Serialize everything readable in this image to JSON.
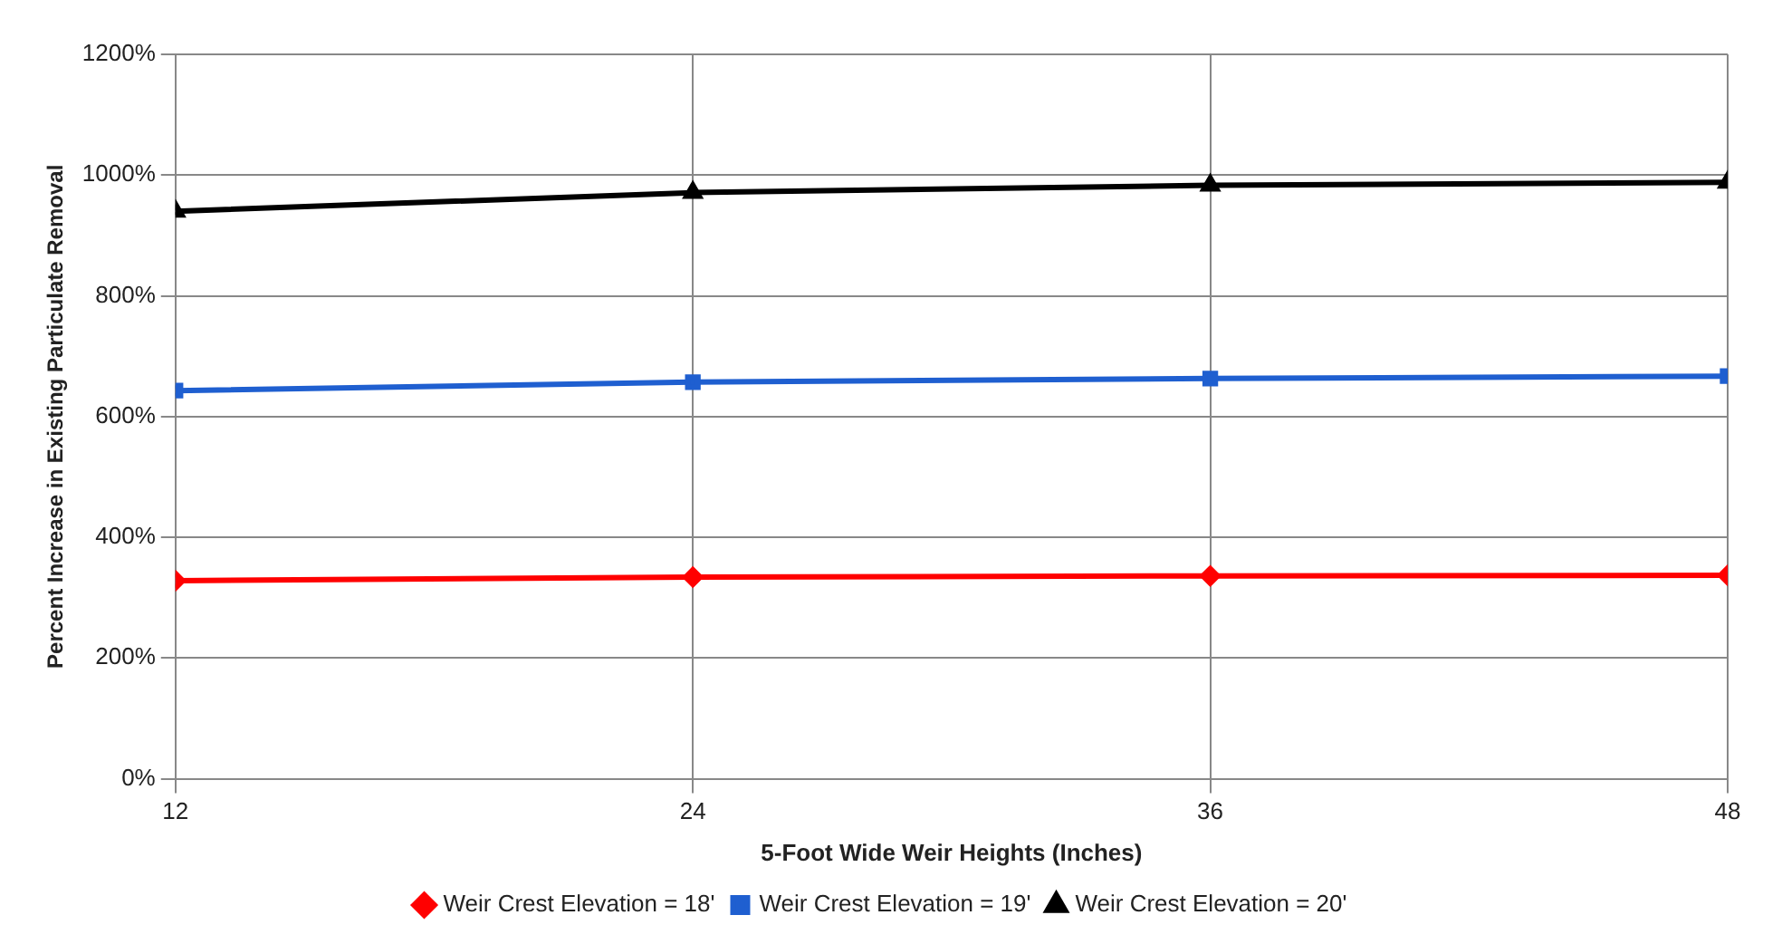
{
  "chart_data": {
    "type": "line",
    "xlabel": "5-Foot Wide Weir Heights (Inches)",
    "ylabel": "Percent Increase in Existing Particulate Removal",
    "x": [
      12,
      24,
      36,
      48
    ],
    "xlim": [
      12,
      48
    ],
    "xticks": [
      12,
      24,
      36,
      48
    ],
    "ylim": [
      0,
      1200
    ],
    "yticks": [
      {
        "value": 0,
        "label": "0%"
      },
      {
        "value": 200,
        "label": "200%"
      },
      {
        "value": 400,
        "label": "400%"
      },
      {
        "value": 600,
        "label": "600%"
      },
      {
        "value": 800,
        "label": "800%"
      },
      {
        "value": 1000,
        "label": "1000%"
      },
      {
        "value": 1200,
        "label": "1200%"
      }
    ],
    "grid": true,
    "legend": "bottom",
    "line_style": "solid",
    "series": [
      {
        "name": "Weir Crest Elevation = 18'",
        "color": "#ff0000",
        "marker": "diamond",
        "values": [
          328,
          334,
          336,
          337
        ]
      },
      {
        "name": "Weir Crest Elevation = 19'",
        "color": "#1f5fd0",
        "marker": "square",
        "values": [
          643,
          657,
          663,
          667
        ]
      },
      {
        "name": "Weir Crest Elevation = 20'",
        "color": "#000000",
        "marker": "triangle",
        "values": [
          940,
          971,
          983,
          988
        ]
      }
    ]
  }
}
